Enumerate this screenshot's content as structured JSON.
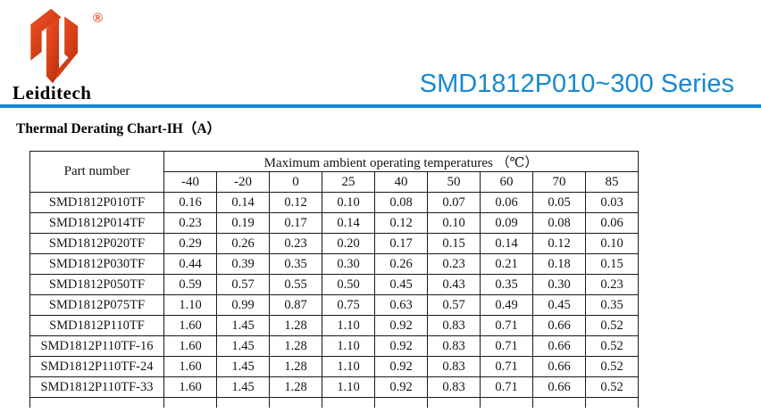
{
  "colors": {
    "accent": "#1789d2",
    "logo_red_light": "#ef5222",
    "logo_red_dark": "#c03110"
  },
  "logo": {
    "brand": "Leiditech",
    "registered_mark": "®"
  },
  "header": {
    "series_title": "SMD1812P010~300 Series"
  },
  "section": {
    "heading": "Thermal Derating Chart-IH（A）"
  },
  "table": {
    "part_number_header": "Part number",
    "temps_header": "Maximum ambient operating temperatures （℃）",
    "temp_columns": [
      "-40",
      "-20",
      "0",
      "25",
      "40",
      "50",
      "60",
      "70",
      "85"
    ],
    "rows": [
      {
        "part": "SMD1812P010TF",
        "values": [
          "0.16",
          "0.14",
          "0.12",
          "0.10",
          "0.08",
          "0.07",
          "0.06",
          "0.05",
          "0.03"
        ]
      },
      {
        "part": "SMD1812P014TF",
        "values": [
          "0.23",
          "0.19",
          "0.17",
          "0.14",
          "0.12",
          "0.10",
          "0.09",
          "0.08",
          "0.06"
        ]
      },
      {
        "part": "SMD1812P020TF",
        "values": [
          "0.29",
          "0.26",
          "0.23",
          "0.20",
          "0.17",
          "0.15",
          "0.14",
          "0.12",
          "0.10"
        ]
      },
      {
        "part": "SMD1812P030TF",
        "values": [
          "0.44",
          "0.39",
          "0.35",
          "0.30",
          "0.26",
          "0.23",
          "0.21",
          "0.18",
          "0.15"
        ]
      },
      {
        "part": "SMD1812P050TF",
        "values": [
          "0.59",
          "0.57",
          "0.55",
          "0.50",
          "0.45",
          "0.43",
          "0.35",
          "0.30",
          "0.23"
        ]
      },
      {
        "part": "SMD1812P075TF",
        "values": [
          "1.10",
          "0.99",
          "0.87",
          "0.75",
          "0.63",
          "0.57",
          "0.49",
          "0.45",
          "0.35"
        ]
      },
      {
        "part": "SMD1812P110TF",
        "values": [
          "1.60",
          "1.45",
          "1.28",
          "1.10",
          "0.92",
          "0.83",
          "0.71",
          "0.66",
          "0.52"
        ]
      },
      {
        "part": "SMD1812P110TF-16",
        "values": [
          "1.60",
          "1.45",
          "1.28",
          "1.10",
          "0.92",
          "0.83",
          "0.71",
          "0.66",
          "0.52"
        ]
      },
      {
        "part": "SMD1812P110TF-24",
        "values": [
          "1.60",
          "1.45",
          "1.28",
          "1.10",
          "0.92",
          "0.83",
          "0.71",
          "0.66",
          "0.52"
        ]
      },
      {
        "part": "SMD1812P110TF-33",
        "values": [
          "1.60",
          "1.45",
          "1.28",
          "1.10",
          "0.92",
          "0.83",
          "0.71",
          "0.66",
          "0.52"
        ]
      }
    ]
  }
}
